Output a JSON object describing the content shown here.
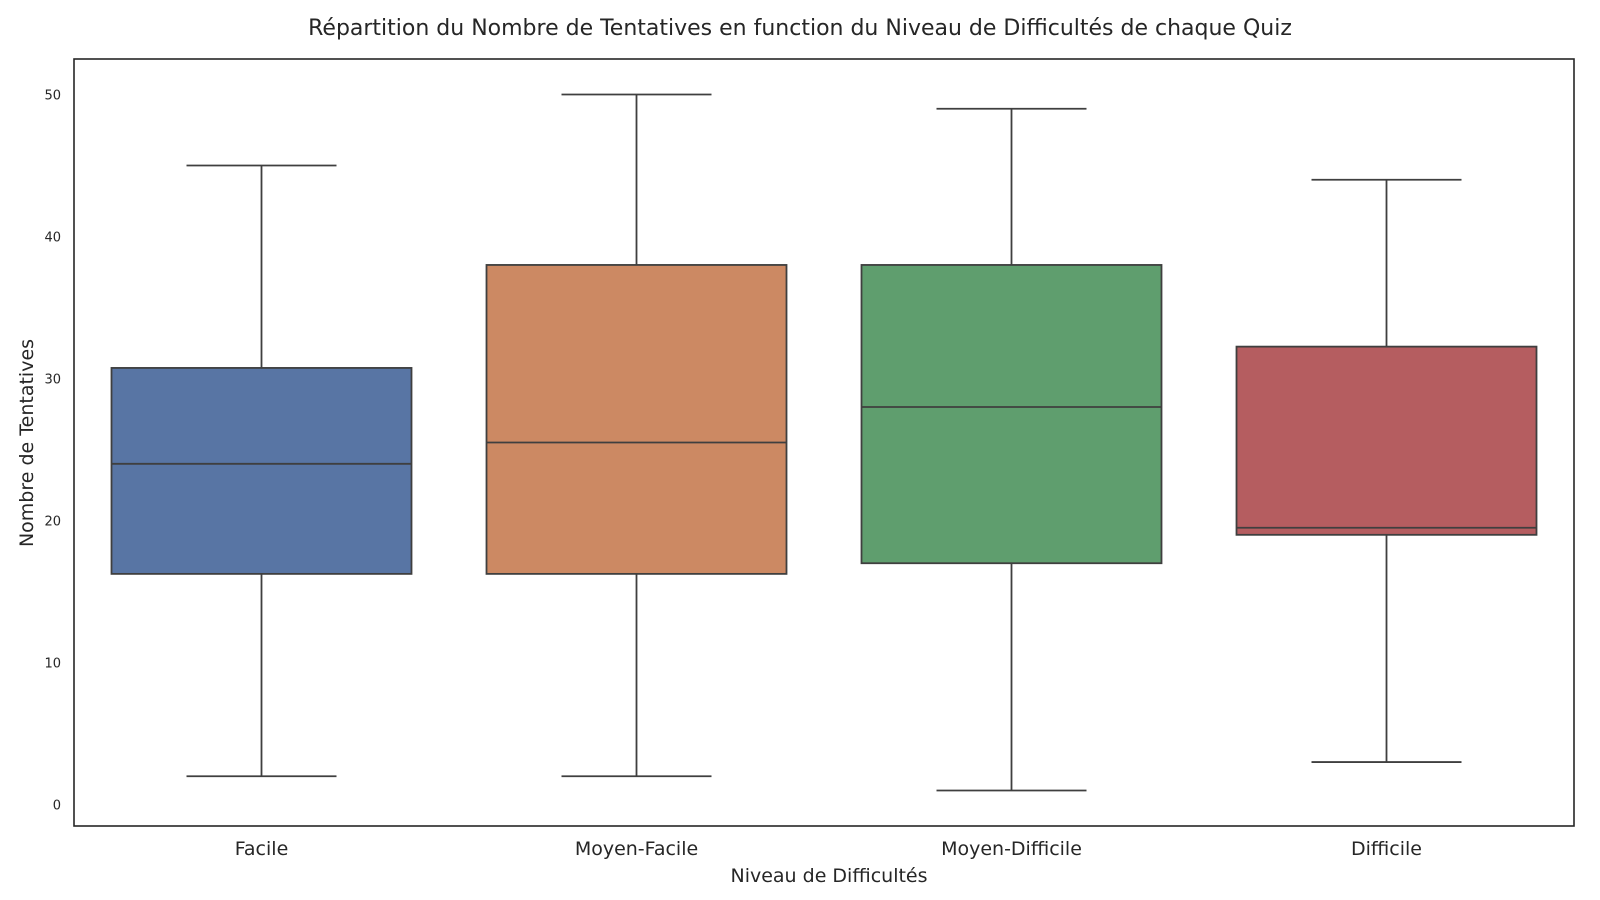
{
  "chart_data": {
    "type": "box",
    "title": "Répartition du Nombre de Tentatives en function du Niveau de Difficultés de chaque Quiz",
    "xlabel": "Niveau de Difficultés",
    "ylabel": "Nombre de Tentatives",
    "ylim": [
      -1.5,
      52.5
    ],
    "yticks": [
      "0",
      "10",
      "20",
      "30",
      "40",
      "50"
    ],
    "grid": false,
    "categories": [
      "Facile",
      "Moyen-Facile",
      "Moyen-Difficile",
      "Difficile"
    ],
    "boxes": [
      {
        "category": "Facile",
        "whisker_low": 2,
        "q1": 16.25,
        "median": 24,
        "q3": 30.75,
        "whisker_high": 45,
        "color": "#5875a4"
      },
      {
        "category": "Moyen-Facile",
        "whisker_low": 2,
        "q1": 16.25,
        "median": 25.5,
        "q3": 38,
        "whisker_high": 50,
        "color": "#cc8963"
      },
      {
        "category": "Moyen-Difficile",
        "whisker_low": 1,
        "q1": 17,
        "median": 28,
        "q3": 38,
        "whisker_high": 49,
        "color": "#5f9e6e"
      },
      {
        "category": "Difficile",
        "whisker_low": 3,
        "q1": 19,
        "median": 19.5,
        "q3": 32.25,
        "whisker_high": 44,
        "color": "#b55d60"
      }
    ]
  }
}
